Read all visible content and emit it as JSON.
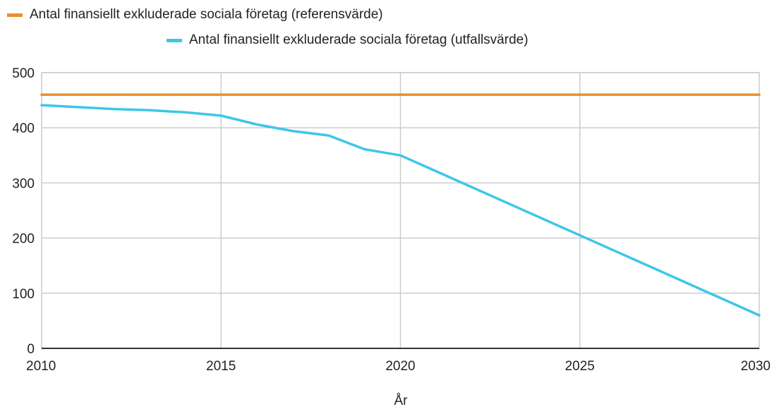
{
  "chart_data": {
    "type": "line",
    "xlabel": "År",
    "ylabel": "",
    "xlim": [
      2010,
      2030
    ],
    "ylim": [
      0,
      500
    ],
    "xticks": [
      2010,
      2015,
      2020,
      2025,
      2030
    ],
    "yticks": [
      0,
      100,
      200,
      300,
      400,
      500
    ],
    "grid": true,
    "legend_position": "top-left",
    "series": [
      {
        "name": "Antal finansiellt exkluderade sociala företag (referensvärde)",
        "color": "#e8912d",
        "x": [
          2010,
          2030
        ],
        "y": [
          460,
          460
        ]
      },
      {
        "name": "Antal finansiellt exkluderade sociala företag (utfallsvärde)",
        "color": "#3ec6e8",
        "x": [
          2010,
          2012,
          2013,
          2014,
          2015,
          2016,
          2017,
          2018,
          2019,
          2020,
          2025,
          2030
        ],
        "y": [
          441,
          434,
          432,
          428,
          422,
          406,
          394,
          386,
          361,
          350,
          205,
          60
        ]
      }
    ]
  }
}
